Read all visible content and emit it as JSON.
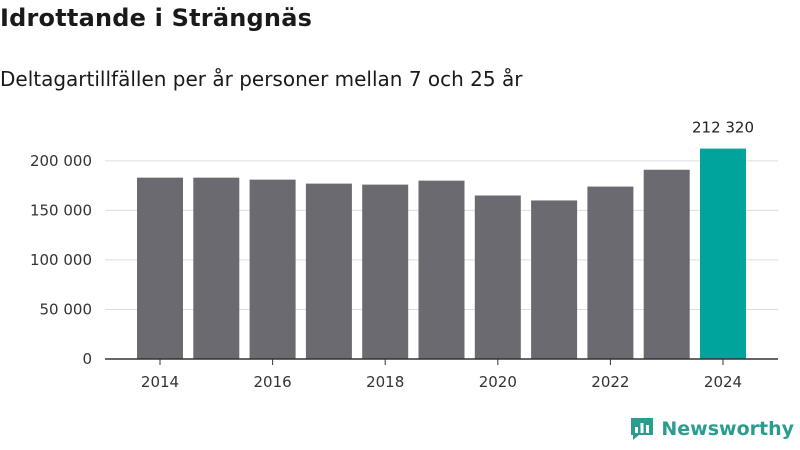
{
  "chart_data": {
    "type": "bar",
    "title": "Idrottande i Strängnäs",
    "subtitle": "Deltagartillfällen per år personer mellan 7 och 25 år",
    "xlabel": "",
    "ylabel": "",
    "categories": [
      "2014",
      "2015",
      "2016",
      "2017",
      "2018",
      "2019",
      "2020",
      "2021",
      "2022",
      "2023",
      "2024"
    ],
    "values": [
      183000,
      183000,
      181000,
      177000,
      176000,
      180000,
      165000,
      160000,
      174000,
      191000,
      212320
    ],
    "x_tick_labels": [
      "2014",
      "2016",
      "2018",
      "2020",
      "2022",
      "2024"
    ],
    "y_tick_labels": [
      "0",
      "50 000",
      "100 000",
      "150 000",
      "200 000"
    ],
    "y_ticks": [
      0,
      50000,
      100000,
      150000,
      200000
    ],
    "ylim": [
      0,
      220000
    ],
    "grid": true,
    "highlight": {
      "category": "2024",
      "label": "212 320"
    },
    "colors": {
      "bar": "#6b6a70",
      "highlight": "#00a49a",
      "grid": "#dddddd",
      "axis": "#333333"
    }
  },
  "brand": {
    "name": "Newsworthy",
    "icon": "newsworthy-logo-icon",
    "color": "#2a9d8f"
  }
}
